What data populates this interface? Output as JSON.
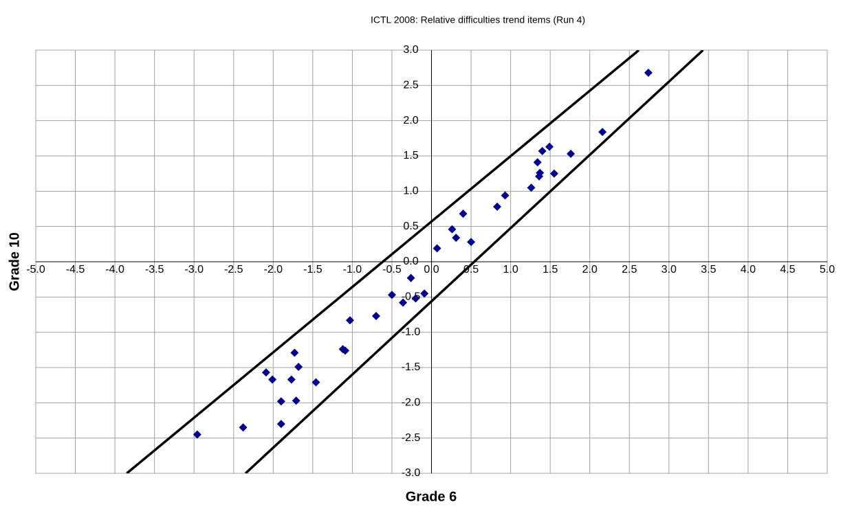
{
  "chart_data": {
    "type": "scatter",
    "title": "ICTL 2008: Relative difficulties trend items (Run 4)",
    "x_label": "Grade 6",
    "y_label": "Grade 10",
    "xlim": [
      -5,
      5
    ],
    "ylim": [
      -3,
      3
    ],
    "xticks": [
      {
        "value": -5,
        "label": "-5.0"
      },
      {
        "value": -4.5,
        "label": "-4.5"
      },
      {
        "value": -4,
        "label": "-4.0"
      },
      {
        "value": -3.5,
        "label": "-3.5"
      },
      {
        "value": -3,
        "label": "-3.0"
      },
      {
        "value": -2.5,
        "label": "-2.5"
      },
      {
        "value": -2,
        "label": "-2.0"
      },
      {
        "value": -1.5,
        "label": "-1.5"
      },
      {
        "value": -1,
        "label": "-1.0"
      },
      {
        "value": -0.5,
        "label": "-0.5"
      },
      {
        "value": 0,
        "label": "0.0"
      },
      {
        "value": 0.5,
        "label": "0.5"
      },
      {
        "value": 1,
        "label": "1.0"
      },
      {
        "value": 1.5,
        "label": "1.5"
      },
      {
        "value": 2,
        "label": "2.0"
      },
      {
        "value": 2.5,
        "label": "2.5"
      },
      {
        "value": 3,
        "label": "3.0"
      },
      {
        "value": 3.5,
        "label": "3.5"
      },
      {
        "value": 4,
        "label": "4.0"
      },
      {
        "value": 4.5,
        "label": "4.5"
      },
      {
        "value": 5,
        "label": "5.0"
      }
    ],
    "yticks": [
      {
        "value": -3,
        "label": "-3.0"
      },
      {
        "value": -2.5,
        "label": "-2.5"
      },
      {
        "value": -2,
        "label": "-2.0"
      },
      {
        "value": -1.5,
        "label": "-1.5"
      },
      {
        "value": -1,
        "label": "-1.0"
      },
      {
        "value": -0.5,
        "label": "-0.5"
      },
      {
        "value": 0,
        "label": "0.0"
      },
      {
        "value": 0.5,
        "label": "0.5"
      },
      {
        "value": 1,
        "label": "1.0"
      },
      {
        "value": 1.5,
        "label": "1.5"
      },
      {
        "value": 2,
        "label": "2.0"
      },
      {
        "value": 2.5,
        "label": "2.5"
      },
      {
        "value": 3,
        "label": "3.0"
      }
    ],
    "grid": true,
    "points": {
      "color": "#00008b",
      "x": [
        2.74,
        2.16,
        1.76,
        1.49,
        1.4,
        1.34,
        1.37,
        1.36,
        1.55,
        1.26,
        0.93,
        0.83,
        0.4,
        0.26,
        0.31,
        0.5,
        0.07,
        -0.09,
        -0.2,
        -0.36,
        -0.26,
        -0.5,
        -0.7,
        -1.03,
        -1.09,
        -1.12,
        -1.46,
        -1.68,
        -1.73,
        -1.77,
        -1.71,
        -1.9,
        -1.9,
        -2.01,
        -2.09,
        -2.38,
        -2.96
      ],
      "values": [
        2.68,
        1.84,
        1.53,
        1.63,
        1.57,
        1.41,
        1.26,
        1.21,
        1.25,
        1.05,
        0.94,
        0.78,
        0.68,
        0.46,
        0.34,
        0.28,
        0.19,
        -0.45,
        -0.52,
        -0.58,
        -0.23,
        -0.47,
        -0.77,
        -0.83,
        -1.26,
        -1.24,
        -1.71,
        -1.49,
        -1.29,
        -1.67,
        -1.97,
        -1.98,
        -2.3,
        -1.67,
        -1.57,
        -2.35,
        -2.45
      ]
    },
    "lines": [
      {
        "color": "#000000",
        "x": [
          -3.85,
          2.62
        ],
        "values": [
          -3,
          3
        ]
      },
      {
        "color": "#000000",
        "x": [
          -2.35,
          3.43
        ],
        "values": [
          -3,
          3
        ]
      }
    ]
  }
}
